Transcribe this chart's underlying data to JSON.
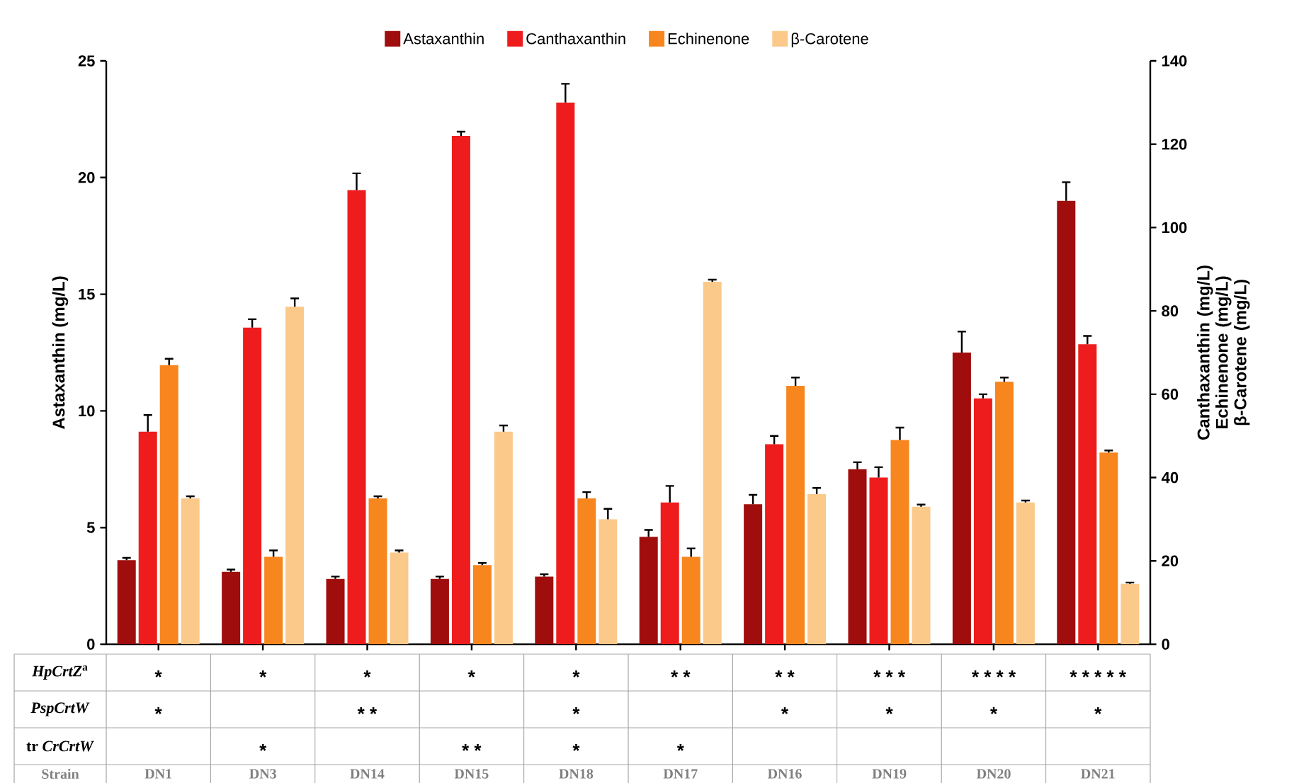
{
  "chart_data": {
    "type": "bar",
    "categories": [
      "DN1",
      "DN3",
      "DN14",
      "DN15",
      "DN18",
      "DN17",
      "DN16",
      "DN19",
      "DN20",
      "DN21"
    ],
    "xlabel": "Strain",
    "ylabel": "Astaxanthin (mg/L)",
    "y2label": "Canthaxanthin (mg/L) Echinenone (mg/L) β-Carotene (mg/L)",
    "ylim": [
      0,
      25
    ],
    "yticks": [
      0,
      5,
      10,
      15,
      20,
      25
    ],
    "y2lim": [
      0,
      140
    ],
    "y2ticks": [
      0,
      20,
      40,
      60,
      80,
      100,
      120,
      140
    ],
    "legend": "top",
    "series": [
      {
        "name": "Astaxanthin",
        "color": "#a00d0d",
        "values": [
          3.6,
          3.1,
          2.8,
          2.8,
          2.9,
          4.6,
          6.0,
          7.5,
          12.5,
          19.0
        ],
        "errors": [
          0.1,
          0.1,
          0.1,
          0.1,
          0.1,
          0.3,
          0.4,
          0.3,
          0.9,
          0.8
        ]
      },
      {
        "name": "Canthaxanthin",
        "color": "#ee1c1c",
        "axis": "y2",
        "values": [
          51,
          76,
          109,
          122,
          130,
          34,
          48,
          40,
          59,
          72
        ],
        "errors": [
          4,
          2,
          4,
          1,
          4.5,
          4,
          2,
          2.5,
          1,
          2
        ]
      },
      {
        "name": "Echinenone",
        "color": "#f7861e",
        "axis": "y2",
        "values": [
          67,
          21,
          35,
          19,
          35,
          21,
          62,
          49,
          63,
          46
        ],
        "errors": [
          1.5,
          1.5,
          0.5,
          0.5,
          1.5,
          2,
          2,
          3,
          1,
          0.5
        ]
      },
      {
        "name": "β-Carotene",
        "color": "#fbc98a",
        "axis": "y2",
        "values": [
          35,
          81,
          22,
          51,
          30,
          87,
          36,
          33,
          34,
          14.5
        ],
        "errors": [
          0.5,
          2,
          0.5,
          1.5,
          2.5,
          0.5,
          1.5,
          0.5,
          0.5,
          0.3
        ]
      }
    ],
    "annotations": [
      "*HpCrtZ*$^{a}$",
      "*",
      "*",
      "*",
      "*",
      "*",
      "* *",
      "* *",
      "* * *",
      "* * * *",
      "* * * * *",
      "*PspCrtW*",
      "*",
      null,
      "* *",
      null,
      "*",
      null,
      "*",
      "*",
      "*",
      "*",
      "tr *CrCrtW*",
      null,
      "*",
      null,
      "* *",
      "*",
      "*",
      null,
      null,
      null,
      null
    ]
  }
}
